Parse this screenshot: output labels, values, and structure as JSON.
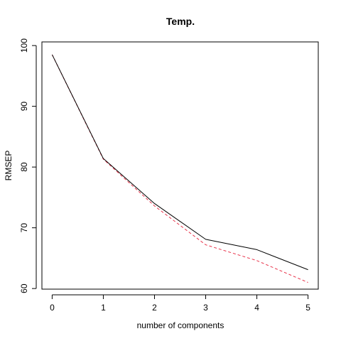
{
  "chart_data": {
    "type": "line",
    "title": "Temp.",
    "xlabel": "number of components",
    "ylabel": "RMSEP",
    "x": [
      0,
      1,
      2,
      3,
      4,
      5
    ],
    "xlim": [
      0,
      5
    ],
    "ylim": [
      60,
      100
    ],
    "xticks": [
      "0",
      "1",
      "2",
      "3",
      "4",
      "5"
    ],
    "yticks": [
      "60",
      "70",
      "80",
      "90",
      "100"
    ],
    "grid": false,
    "legend": "none",
    "series": [
      {
        "key": "cv",
        "values": [
          98.5,
          81.4,
          74.0,
          68.1,
          66.4,
          63.1
        ],
        "color": "#000000",
        "style": "solid"
      },
      {
        "key": "adjcv",
        "values": [
          98.5,
          81.3,
          73.6,
          67.2,
          64.6,
          61.0
        ],
        "color": "#e8334a",
        "style": "dashed"
      }
    ]
  }
}
